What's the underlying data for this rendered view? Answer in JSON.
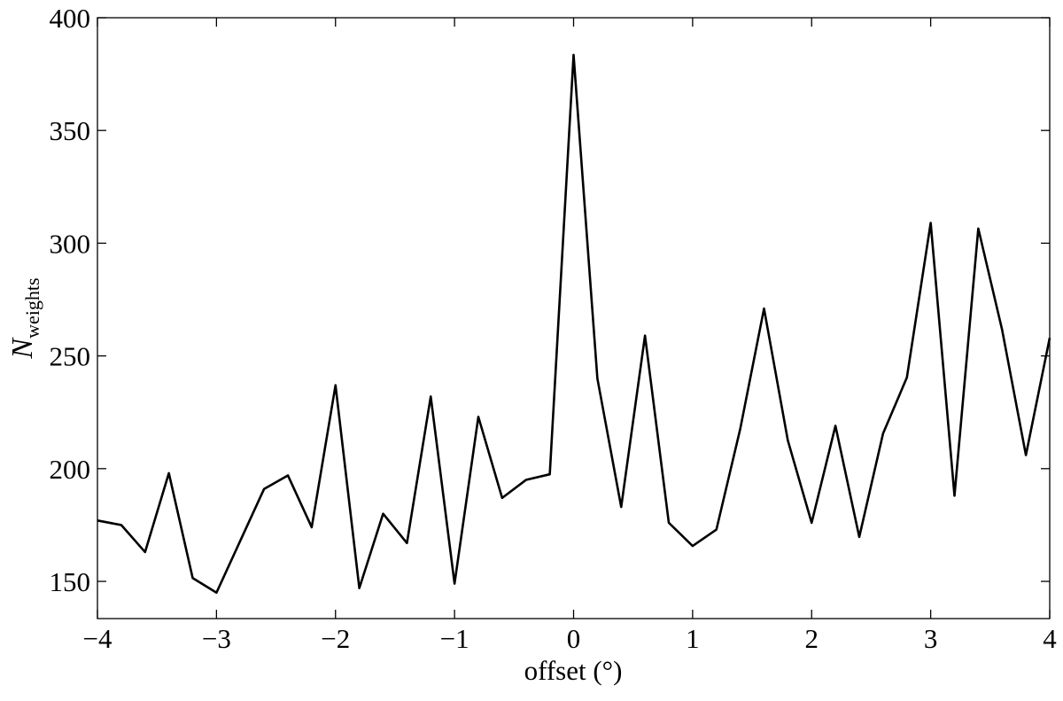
{
  "chart_data": {
    "type": "line",
    "xlabel": "offset (°)",
    "ylabel": "N",
    "ylabel_subscript": "weights",
    "x": [
      -4,
      -3.8,
      -3.6,
      -3.4,
      -3.2,
      -3,
      -2.8,
      -2.6,
      -2.4,
      -2.2,
      -2,
      -1.8,
      -1.6,
      -1.4,
      -1.2,
      -1,
      -0.8,
      -0.6,
      -0.4,
      -0.2,
      0,
      0.2,
      0.4,
      0.6,
      0.8,
      1,
      1.2,
      1.4,
      1.6,
      1.8,
      2,
      2.2,
      2.4,
      2.6,
      2.8,
      3,
      3.2,
      3.4,
      3.6,
      3.8,
      4
    ],
    "values": [
      177,
      175,
      163,
      198,
      151.5,
      145,
      168,
      191,
      197,
      174,
      237,
      147,
      180,
      167,
      232,
      149,
      223,
      187,
      195,
      197.5,
      383.5,
      240,
      183,
      259,
      176,
      165.7,
      173,
      217.6,
      271,
      212.5,
      176,
      219,
      169.7,
      215.6,
      240.4,
      309,
      188,
      306.5,
      261.6,
      206,
      258
    ],
    "color": "#000000",
    "xlim": [
      -4,
      4
    ],
    "ylim": [
      133.5,
      400
    ],
    "xticks": [
      {
        "value": -4,
        "label": "−4"
      },
      {
        "value": -3,
        "label": "−3"
      },
      {
        "value": -2,
        "label": "−2"
      },
      {
        "value": -1,
        "label": "−1"
      },
      0,
      1,
      2,
      3,
      4
    ],
    "yticks": [
      150,
      200,
      250,
      300,
      350,
      400
    ]
  }
}
